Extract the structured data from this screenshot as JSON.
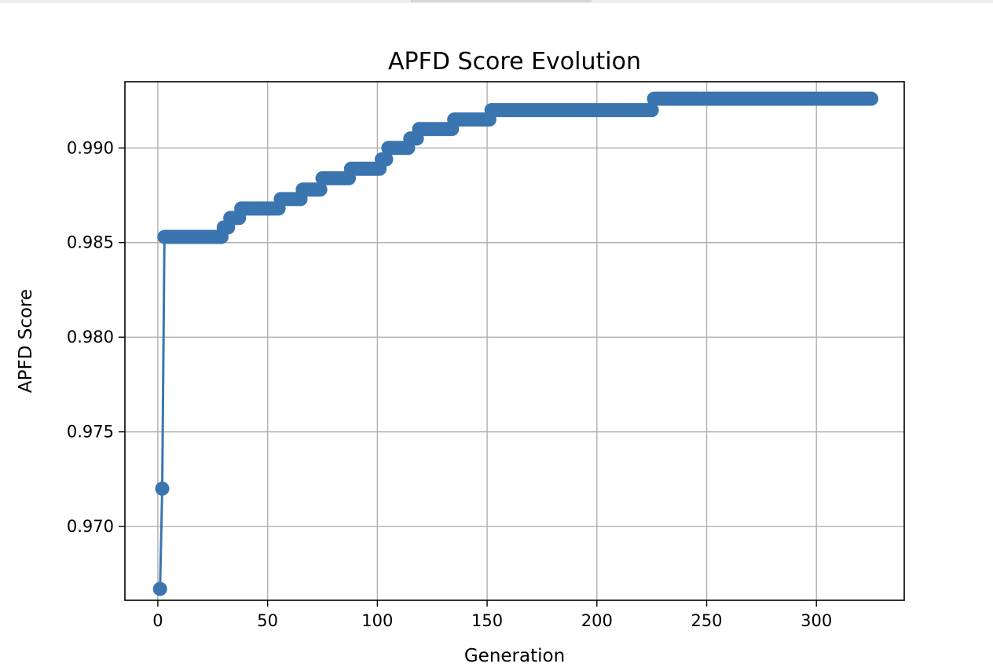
{
  "chart_data": {
    "type": "line",
    "title": "APFD Score Evolution",
    "xlabel": "Generation",
    "ylabel": "APFD Score",
    "xlim": [
      -15,
      340
    ],
    "ylim": [
      0.9661,
      0.9935
    ],
    "xticks": [
      0,
      50,
      100,
      150,
      200,
      250,
      300
    ],
    "xtick_labels": [
      "0",
      "50",
      "100",
      "150",
      "200",
      "250",
      "300"
    ],
    "yticks": [
      0.97,
      0.975,
      0.98,
      0.985,
      0.99
    ],
    "ytick_labels": [
      "0.970",
      "0.975",
      "0.980",
      "0.985",
      "0.990"
    ],
    "grid": true,
    "marker": "circle",
    "color": "#3b75af",
    "series": [
      {
        "name": "",
        "steps": [
          {
            "from": 1,
            "to": 1,
            "y": 0.9667
          },
          {
            "from": 2,
            "to": 2,
            "y": 0.972
          },
          {
            "from": 3,
            "to": 29,
            "y": 0.9853
          },
          {
            "from": 30,
            "to": 32,
            "y": 0.9858
          },
          {
            "from": 33,
            "to": 37,
            "y": 0.9863
          },
          {
            "from": 38,
            "to": 55,
            "y": 0.9868
          },
          {
            "from": 56,
            "to": 65,
            "y": 0.9873
          },
          {
            "from": 66,
            "to": 74,
            "y": 0.9878
          },
          {
            "from": 75,
            "to": 87,
            "y": 0.9884
          },
          {
            "from": 88,
            "to": 101,
            "y": 0.9889
          },
          {
            "from": 102,
            "to": 104,
            "y": 0.9894
          },
          {
            "from": 105,
            "to": 114,
            "y": 0.99
          },
          {
            "from": 115,
            "to": 118,
            "y": 0.9905
          },
          {
            "from": 119,
            "to": 134,
            "y": 0.991
          },
          {
            "from": 135,
            "to": 151,
            "y": 0.9915
          },
          {
            "from": 152,
            "to": 225,
            "y": 0.992
          },
          {
            "from": 226,
            "to": 325,
            "y": 0.9926
          }
        ]
      }
    ]
  }
}
